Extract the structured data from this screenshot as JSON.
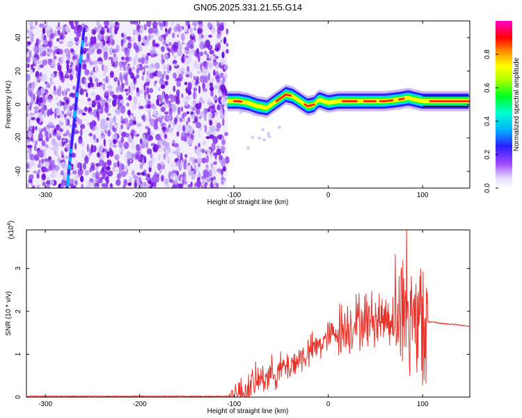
{
  "title": "GN05.2025.331.21.55.G14",
  "chart_data": [
    {
      "type": "heatmap",
      "xlabel": "Height of straight line (km)",
      "ylabel": "Frequency (Hz)",
      "xlim": [
        -320,
        150
      ],
      "ylim": [
        -50,
        50
      ],
      "x_ticks": [
        -300,
        -200,
        -100,
        0,
        100
      ],
      "y_ticks": [
        -40,
        -20,
        0,
        20,
        40
      ],
      "noise_region_x": [
        -320,
        -107
      ],
      "diagonal_streak": {
        "x": [
          -277,
          -259
        ],
        "y": [
          -50,
          45
        ]
      },
      "ridge": {
        "x": [
          -107,
          -95,
          -85,
          -75,
          -65,
          -55,
          -45,
          -38,
          -30,
          -22,
          -15,
          -10,
          -5,
          0,
          10,
          20,
          40,
          60,
          75,
          85,
          92,
          100,
          110,
          150
        ],
        "y": [
          2,
          2,
          1,
          -1,
          -2,
          2,
          6,
          5,
          2,
          -1,
          0,
          3,
          2,
          1,
          2,
          2,
          2,
          2,
          3,
          4,
          3,
          2,
          2,
          2
        ]
      },
      "colorbar": {
        "label": "Normalized spectral amplitude",
        "range": [
          0,
          1
        ],
        "ticks": [
          "0.0",
          "0.2",
          "0.4",
          "0.6",
          "0.8"
        ]
      }
    },
    {
      "type": "line",
      "xlabel": "Height of straight line (km)",
      "ylabel": "SNR (10 * v/v)",
      "scale_label_base": "(x10",
      "scale_label_exp": "4",
      "scale_label_close": ")",
      "xlim": [
        -320,
        150
      ],
      "ylim": [
        0,
        3.9
      ],
      "x_ticks": [
        -300,
        -200,
        -100,
        0,
        100
      ],
      "y_ticks": [
        0,
        1,
        2,
        3
      ],
      "color": "#e8332a",
      "envelope": {
        "x": [
          -320,
          -110,
          -100,
          -90,
          -80,
          -70,
          -60,
          -50,
          -40,
          -30,
          -20,
          -10,
          0,
          10,
          20,
          30,
          40,
          50,
          60,
          70,
          80,
          90,
          100,
          105,
          110,
          120,
          130,
          140,
          150
        ],
        "y": [
          0.02,
          0.02,
          0.03,
          0.1,
          0.3,
          0.45,
          0.55,
          0.65,
          0.75,
          0.9,
          1.05,
          1.2,
          1.4,
          1.55,
          1.65,
          1.75,
          1.8,
          1.82,
          1.85,
          1.85,
          1.85,
          1.85,
          1.85,
          1.75,
          1.75,
          1.72,
          1.7,
          1.68,
          1.65
        ]
      },
      "peak": {
        "x": 83,
        "y": 3.9
      }
    }
  ]
}
